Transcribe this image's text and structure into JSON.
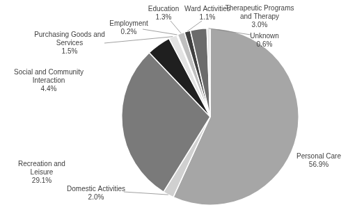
{
  "chart_data": {
    "type": "pie",
    "categories": [
      "Personal Care",
      "Domestic Activities",
      "Recreation and Leisure",
      "Social and Community Interaction",
      "Purchasing Goods and Services",
      "Employment",
      "Education",
      "Ward Activities",
      "Therapeutic Programs and Therapy",
      "Unknown"
    ],
    "values": [
      56.9,
      2.0,
      29.1,
      4.4,
      1.5,
      0.2,
      1.3,
      1.1,
      3.0,
      0.6
    ],
    "value_labels": [
      "56.9%",
      "2.0%",
      "29.1%",
      "4.4%",
      "1.5%",
      "0.2%",
      "1.3%",
      "1.1%",
      "3.0%",
      "0.6%"
    ],
    "colors": [
      "#a6a6a6",
      "#d0d0d0",
      "#7a7a7a",
      "#1f1f1f",
      "#e3e3e3",
      "#595959",
      "#bfbfbf",
      "#404040",
      "#6b6b6b",
      "#e8e8e8"
    ],
    "data_labels": true
  }
}
